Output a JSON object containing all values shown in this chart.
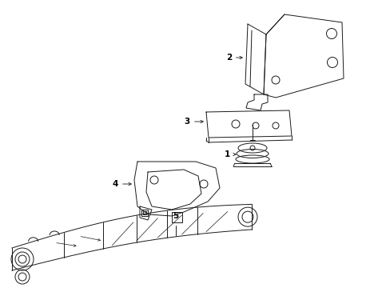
{
  "background_color": "#ffffff",
  "line_color": "#1a1a1a",
  "label_color": "#000000",
  "fig_width": 4.89,
  "fig_height": 3.6,
  "dpi": 100,
  "labels": [
    "1",
    "2",
    "3",
    "4",
    "5"
  ]
}
